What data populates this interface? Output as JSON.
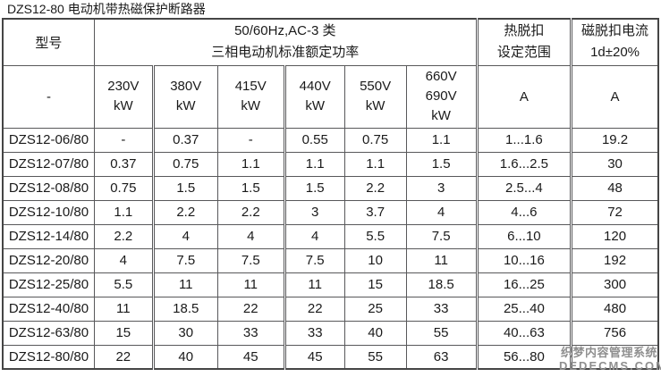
{
  "title": "DZS12-80 电动机带热磁保护断路器",
  "table": {
    "header": {
      "model": "型号",
      "model_dash": "-",
      "power_line1": "50/60Hz,AC-3 类",
      "power_line2": "三相电动机标准额定功率",
      "voltage_cols": [
        [
          "230V",
          "kW"
        ],
        [
          "380V",
          "kW"
        ],
        [
          "415V",
          "kW"
        ],
        [
          "440V",
          "kW"
        ],
        [
          "550V",
          "kW"
        ],
        [
          "660V",
          "690V",
          "kW"
        ]
      ],
      "thermal_line1": "热脱扣",
      "thermal_line2": "设定范围",
      "thermal_unit": "A",
      "magnetic_line1": "磁脱扣电流",
      "magnetic_line2": "1d±20%",
      "magnetic_unit": "A"
    },
    "rows": [
      [
        "DZS12-06/80",
        "-",
        "0.37",
        "-",
        "0.55",
        "0.75",
        "1.1",
        "1...1.6",
        "19.2"
      ],
      [
        "DZS12-07/80",
        "0.37",
        "0.75",
        "1.1",
        "1.1",
        "1.1",
        "1.5",
        "1.6...2.5",
        "30"
      ],
      [
        "DZS12-08/80",
        "0.75",
        "1.5",
        "1.5",
        "1.5",
        "2.2",
        "3",
        "2.5...4",
        "48"
      ],
      [
        "DZS12-10/80",
        "1.1",
        "2.2",
        "2.2",
        "3",
        "3.7",
        "4",
        "4...6",
        "72"
      ],
      [
        "DZS12-14/80",
        "2.2",
        "4",
        "4",
        "4",
        "5.5",
        "7.5",
        "6...10",
        "120"
      ],
      [
        "DZS12-20/80",
        "4",
        "7.5",
        "7.5",
        "7.5",
        "10",
        "11",
        "10...16",
        "192"
      ],
      [
        "DZS12-25/80",
        "5.5",
        "11",
        "11",
        "11",
        "15",
        "18.5",
        "16...25",
        "300"
      ],
      [
        "DZS12-40/80",
        "11",
        "18.5",
        "22",
        "22",
        "25",
        "33",
        "25...40",
        "480"
      ],
      [
        "DZS12-63/80",
        "15",
        "30",
        "33",
        "33",
        "40",
        "55",
        "40...63",
        "756"
      ],
      [
        "DZS12-80/80",
        "22",
        "40",
        "45",
        "45",
        "55",
        "63",
        "56...80",
        ""
      ]
    ]
  },
  "watermark": {
    "line1": "织梦内容管理系统",
    "line2": "DEDECMS.COM"
  },
  "colors": {
    "background": "#ffffff",
    "text": "#1a1a1a",
    "border": "#58585a",
    "watermark": "#8f8f8f"
  }
}
